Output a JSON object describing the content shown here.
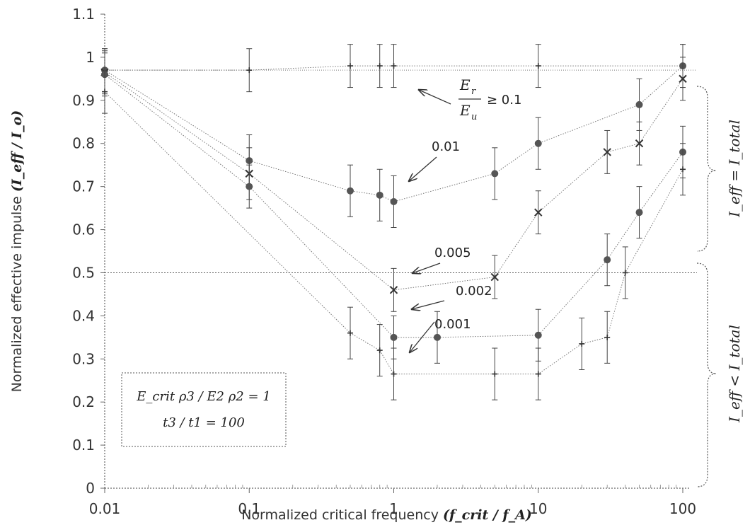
{
  "chart_data": {
    "type": "scatter",
    "x_scale": "log",
    "xlim": [
      0.01,
      100
    ],
    "ylim": [
      0,
      1.1
    ],
    "x_ticks": [
      "0.01",
      "0.1",
      "1",
      "10",
      "100"
    ],
    "y_ticks": [
      "0",
      "0.1",
      "0.2",
      "0.3",
      "0.4",
      "0.5",
      "0.6",
      "0.7",
      "0.8",
      "0.9",
      "1",
      "1.1"
    ],
    "ylabel_text": "Normalized effective impulse ",
    "ylabel_math": "(I_eff / I_o)",
    "xlabel_text": "Normalized critical frequency ",
    "xlabel_math": "(f_crit / f_A)",
    "reference_line_y": 0.5,
    "series": [
      {
        "label": "Er/Eu ≥ 0.1",
        "marker": "plus",
        "points": [
          {
            "x": 0.01,
            "y": 0.97,
            "err": 0.05
          },
          {
            "x": 0.1,
            "y": 0.97,
            "err": 0.05
          },
          {
            "x": 0.5,
            "y": 0.98,
            "err": 0.05
          },
          {
            "x": 0.8,
            "y": 0.98,
            "err": 0.05
          },
          {
            "x": 1,
            "y": 0.98,
            "err": 0.05
          },
          {
            "x": 10,
            "y": 0.98,
            "err": 0.05
          },
          {
            "x": 100,
            "y": 0.98,
            "err": 0.05
          }
        ]
      },
      {
        "label": "0.01",
        "marker": "dot",
        "points": [
          {
            "x": 0.01,
            "y": 0.97,
            "err": 0.05
          },
          {
            "x": 0.1,
            "y": 0.76,
            "err": 0.06
          },
          {
            "x": 0.5,
            "y": 0.69,
            "err": 0.06
          },
          {
            "x": 0.8,
            "y": 0.68,
            "err": 0.06
          },
          {
            "x": 1,
            "y": 0.665,
            "err": 0.06
          },
          {
            "x": 5,
            "y": 0.73,
            "err": 0.06
          },
          {
            "x": 10,
            "y": 0.8,
            "err": 0.06
          },
          {
            "x": 50,
            "y": 0.89,
            "err": 0.06
          },
          {
            "x": 100,
            "y": 0.98,
            "err": 0.05
          }
        ]
      },
      {
        "label": "0.005",
        "marker": "cross",
        "points": [
          {
            "x": 0.01,
            "y": 0.965,
            "err": 0.05
          },
          {
            "x": 0.1,
            "y": 0.73,
            "err": 0.06
          },
          {
            "x": 1,
            "y": 0.46,
            "err": 0.05
          },
          {
            "x": 5,
            "y": 0.49,
            "err": 0.05
          },
          {
            "x": 10,
            "y": 0.64,
            "err": 0.05
          },
          {
            "x": 30,
            "y": 0.78,
            "err": 0.05
          },
          {
            "x": 50,
            "y": 0.8,
            "err": 0.05
          },
          {
            "x": 100,
            "y": 0.95,
            "err": 0.05
          }
        ]
      },
      {
        "label": "0.002",
        "marker": "dot",
        "points": [
          {
            "x": 0.01,
            "y": 0.96,
            "err": 0.05
          },
          {
            "x": 0.1,
            "y": 0.7,
            "err": 0.05
          },
          {
            "x": 1,
            "y": 0.35,
            "err": 0.05
          },
          {
            "x": 2,
            "y": 0.35,
            "err": 0.06
          },
          {
            "x": 10,
            "y": 0.355,
            "err": 0.06
          },
          {
            "x": 30,
            "y": 0.53,
            "err": 0.06
          },
          {
            "x": 50,
            "y": 0.64,
            "err": 0.06
          },
          {
            "x": 100,
            "y": 0.78,
            "err": 0.06
          }
        ]
      },
      {
        "label": "0.001",
        "marker": "plus",
        "points": [
          {
            "x": 0.01,
            "y": 0.92,
            "err": 0.05
          },
          {
            "x": 0.5,
            "y": 0.36,
            "err": 0.06
          },
          {
            "x": 0.8,
            "y": 0.32,
            "err": 0.06
          },
          {
            "x": 1,
            "y": 0.265,
            "err": 0.06
          },
          {
            "x": 5,
            "y": 0.265,
            "err": 0.06
          },
          {
            "x": 10,
            "y": 0.265,
            "err": 0.06
          },
          {
            "x": 20,
            "y": 0.335,
            "err": 0.06
          },
          {
            "x": 30,
            "y": 0.35,
            "err": 0.06
          },
          {
            "x": 40,
            "y": 0.5,
            "err": 0.06
          },
          {
            "x": 100,
            "y": 0.74,
            "err": 0.06
          }
        ]
      }
    ],
    "annotations": {
      "er": "E",
      "er_sub": "r",
      "eu": "E",
      "eu_sub": "u",
      "geq": "≥ 0.1",
      "a001": "0.01",
      "a0005": "0.005",
      "a0002": "0.002",
      "a0001": "0.001"
    },
    "box_line1": "E_crit ρ3 / E2 ρ2 = 1",
    "box_line2": "t3 / t1 = 100",
    "brace_upper": "I_eff = I_total",
    "brace_lower": "I_eff < I_total"
  }
}
